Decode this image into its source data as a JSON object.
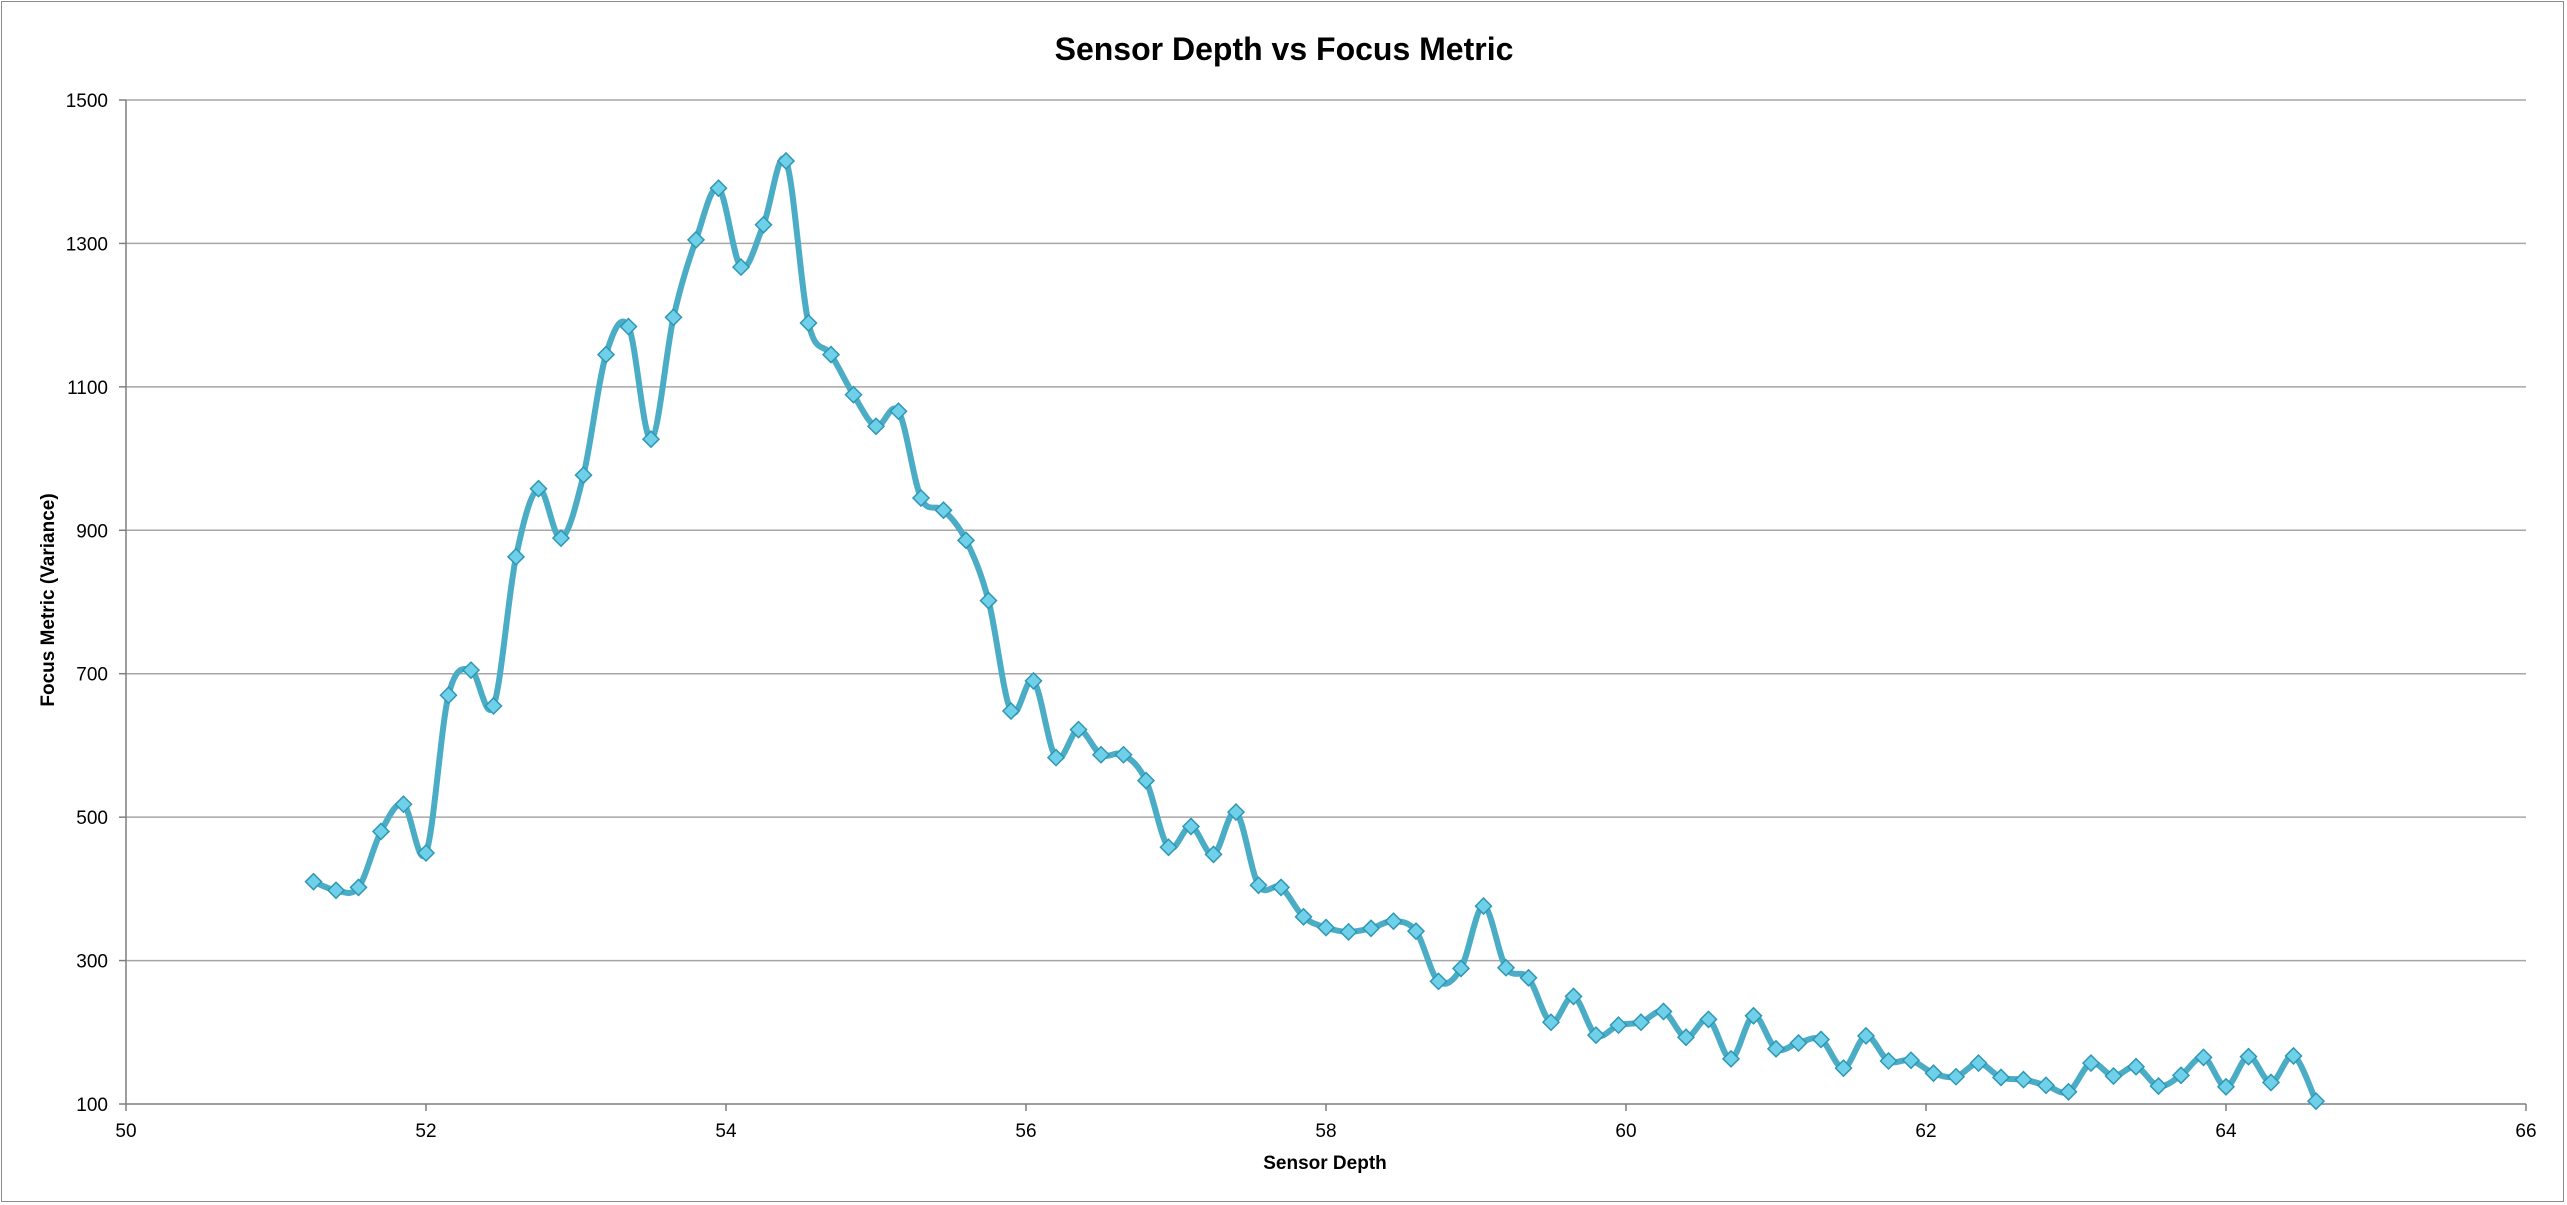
{
  "chart_data": {
    "type": "line",
    "title": "Sensor Depth vs Focus Metric",
    "xlabel": "Sensor Depth",
    "ylabel": "Focus Metric (Variance)",
    "xlim": [
      50,
      66
    ],
    "ylim": [
      100,
      1500
    ],
    "x_ticks": [
      50,
      52,
      54,
      56,
      58,
      60,
      62,
      64,
      66
    ],
    "y_ticks": [
      100,
      300,
      500,
      700,
      900,
      1100,
      1300,
      1500
    ],
    "grid": "horizontal",
    "legend": "none",
    "smoothed": true,
    "marker": "diamond",
    "line_color": "#4bacc6",
    "marker_color": "#6fd0ea",
    "series": [
      {
        "x": [
          51.25,
          51.4,
          51.55,
          51.7,
          51.85,
          52.0,
          52.15,
          52.3,
          52.45,
          52.6,
          52.75,
          52.9,
          53.05,
          53.2,
          53.35,
          53.5,
          53.65,
          53.8,
          53.95,
          54.1,
          54.25,
          54.4,
          54.55,
          54.7,
          54.85,
          55.0,
          55.15,
          55.3,
          55.45,
          55.6,
          55.75,
          55.9,
          56.05,
          56.2,
          56.35,
          56.5,
          56.65,
          56.8,
          56.95,
          57.1,
          57.25,
          57.4,
          57.55,
          57.7,
          57.85,
          58.0,
          58.15,
          58.3,
          58.45,
          58.6,
          58.75,
          58.9,
          59.05,
          59.2,
          59.35,
          59.5,
          59.65,
          59.8,
          59.95,
          60.1,
          60.25,
          60.4,
          60.55,
          60.7,
          60.85,
          61.0,
          61.15,
          61.3,
          61.45,
          61.6,
          61.75,
          61.9,
          62.05,
          62.2,
          62.35,
          62.5,
          62.65,
          62.8,
          62.95,
          63.1,
          63.25,
          63.4,
          63.55,
          63.7,
          63.85,
          64.0,
          64.15,
          64.3,
          64.45,
          64.6
        ],
        "y": [
          410,
          398,
          402,
          480,
          518,
          450,
          670,
          705,
          655,
          863,
          958,
          889,
          977,
          1145,
          1184,
          1027,
          1197,
          1305,
          1377,
          1267,
          1326,
          1415,
          1189,
          1145,
          1089,
          1045,
          1066,
          945,
          928,
          886,
          802,
          648,
          690,
          583,
          622,
          587,
          587,
          551,
          458,
          487,
          448,
          507,
          405,
          402,
          361,
          346,
          340,
          345,
          355,
          341,
          271,
          289,
          376,
          290,
          276,
          214,
          250,
          196,
          210,
          214,
          229,
          193,
          218,
          163,
          223,
          177,
          185,
          190,
          150,
          195,
          160,
          161,
          143,
          138,
          157,
          137,
          134,
          126,
          117,
          157,
          139,
          152,
          125,
          140,
          165,
          124,
          166,
          130,
          167,
          104
        ]
      }
    ]
  }
}
